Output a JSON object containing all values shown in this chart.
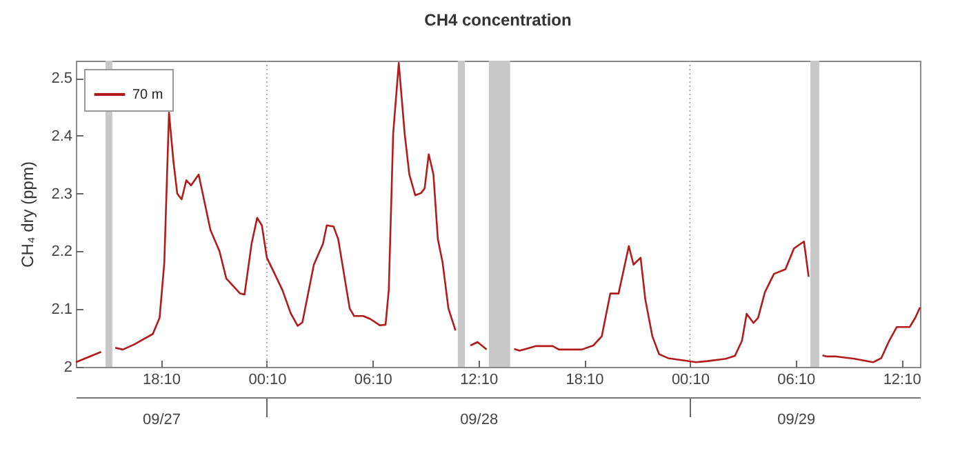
{
  "chart_data": {
    "type": "line",
    "title": "CH4 concentration",
    "ylabel": "CH₄ dry (ppm)",
    "xlim": [
      "--09-27T13:20",
      "--09-29T13:13"
    ],
    "xticks": [
      {
        "value": "--09-27T18:10",
        "label": "18:10"
      },
      {
        "value": "--09-28T00:10",
        "label": "00:10"
      },
      {
        "value": "--09-28T06:10",
        "label": "06:10"
      },
      {
        "value": "--09-28T12:10",
        "label": "12:10"
      },
      {
        "value": "--09-28T18:10",
        "label": "18:10"
      },
      {
        "value": "--09-29T00:10",
        "label": "00:10"
      },
      {
        "value": "--09-29T06:10",
        "label": "06:10"
      },
      {
        "value": "--09-29T12:10",
        "label": "12:10"
      }
    ],
    "x2lim": [
      "--09-27T13:20",
      "--09-29T13:13"
    ],
    "x2ticks": [
      {
        "value": "--09-27T18:10",
        "label": "09/27"
      },
      {
        "value": "--09-28T00:10",
        "label": null
      },
      {
        "value": "--09-28T12:10",
        "label": "09/28"
      },
      {
        "value": "--09-29T00:10",
        "label": null
      },
      {
        "value": "--09-29T06:10",
        "label": "09/29"
      }
    ],
    "ylim": [
      2,
      2.53
    ],
    "yticks": [
      2,
      2.1,
      2.2,
      2.3,
      2.4,
      2.5
    ],
    "grid": false,
    "legend": "top left",
    "line_style": "solid",
    "marker": "none",
    "ref_lines": [
      {
        "axis": "x",
        "value": "--09-28T00:10",
        "label": null,
        "color": "#999999",
        "line_style": "dotted"
      },
      {
        "axis": "x",
        "value": "--09-29T00:10",
        "label": null,
        "color": "#999999",
        "line_style": "dotted"
      }
    ],
    "bands": [
      {
        "axis": "x",
        "from": "--09-27T15:01",
        "to": "--09-27T15:24",
        "label": null,
        "color": "#c8c8c8"
      },
      {
        "axis": "x",
        "from": "--09-28T11:00",
        "to": "--09-28T11:24",
        "label": null,
        "color": "#c8c8c8"
      },
      {
        "axis": "x",
        "from": "--09-28T12:46",
        "to": "--09-28T13:58",
        "label": null,
        "color": "#c8c8c8"
      },
      {
        "axis": "x",
        "from": "--09-29T07:00",
        "to": "--09-29T07:30",
        "label": null,
        "color": "#c8c8c8"
      }
    ],
    "series": [
      {
        "name": "70 m",
        "color": "#b31b1b",
        "x": [
          "--09-27T13:20",
          "--09-27T14:46",
          "--09-27T15:12",
          "--09-27T15:34",
          "--09-27T16:00",
          "--09-27T16:39",
          "--09-27T17:42",
          "--09-27T18:05",
          "--09-27T18:21",
          "--09-27T18:37",
          "--09-27T18:52",
          "--09-27T19:05",
          "--09-27T19:20",
          "--09-27T19:36",
          "--09-27T19:52",
          "--09-27T20:18",
          "--09-27T20:58",
          "--09-27T21:29",
          "--09-27T21:52",
          "--09-27T22:39",
          "--09-27T22:54",
          "--09-27T23:18",
          "--09-27T23:37",
          "--09-27T23:53",
          "--09-28T00:10",
          "--09-28T00:29",
          "--09-28T01:03",
          "--09-28T01:31",
          "--09-28T01:55",
          "--09-28T02:11",
          "--09-28T02:50",
          "--09-28T03:21",
          "--09-28T03:34",
          "--09-28T03:57",
          "--09-28T04:13",
          "--09-28T04:52",
          "--09-28T05:07",
          "--09-28T05:38",
          "--09-28T06:02",
          "--09-28T06:34",
          "--09-28T06:54",
          "--09-28T07:05",
          "--09-28T07:20",
          "--09-28T07:39",
          "--09-28T07:59",
          "--09-28T08:15",
          "--09-28T08:35",
          "--09-28T08:55",
          "--09-28T09:07",
          "--09-28T09:21",
          "--09-28T09:37",
          "--09-28T09:52",
          "--09-28T10:08",
          "--09-28T10:28",
          "--09-28T10:52",
          "--09-28T11:12",
          "--09-28T11:43",
          "--09-28T12:07",
          "--09-28T12:38",
          "--09-28T13:24",
          "--09-28T14:12",
          "--09-28T14:30",
          "--09-28T15:26",
          "--09-28T16:23",
          "--09-28T16:44",
          "--09-28T18:02",
          "--09-28T18:41",
          "--09-28T19:10",
          "--09-28T19:39",
          "--09-28T20:07",
          "--09-28T20:42",
          "--09-28T20:58",
          "--09-28T21:22",
          "--09-28T21:38",
          "--09-28T22:02",
          "--09-28T22:25",
          "--09-28T22:56",
          "--09-28T23:51",
          "--09-29T00:31",
          "--09-29T01:10",
          "--09-29T02:12",
          "--09-29T02:43",
          "--09-29T03:07",
          "--09-29T03:23",
          "--09-29T03:46",
          "--09-29T04:02",
          "--09-29T04:25",
          "--09-29T04:56",
          "--09-29T05:35",
          "--09-29T06:04",
          "--09-29T06:38",
          "--09-29T06:54",
          "--09-29T07:12",
          "--09-29T07:41",
          "--09-29T07:56",
          "--09-29T08:28",
          "--09-29T09:30",
          "--09-29T10:33",
          "--09-29T11:01",
          "--09-29T11:28",
          "--09-29T11:54",
          "--09-29T12:38",
          "--09-29T12:57",
          "--09-29T13:13"
        ],
        "values": [
          2.008,
          2.026,
          null,
          2.033,
          2.03,
          2.039,
          2.057,
          2.085,
          2.18,
          2.44,
          2.356,
          2.3,
          2.29,
          2.323,
          2.314,
          2.333,
          2.237,
          2.2,
          2.153,
          2.127,
          2.125,
          2.213,
          2.258,
          2.245,
          2.189,
          2.169,
          2.133,
          2.093,
          2.071,
          2.077,
          2.177,
          2.213,
          2.245,
          2.243,
          2.221,
          2.101,
          2.088,
          2.088,
          2.083,
          2.072,
          2.073,
          2.133,
          2.404,
          2.526,
          2.404,
          2.333,
          2.297,
          2.301,
          2.309,
          2.368,
          2.333,
          2.221,
          2.181,
          2.101,
          2.063,
          null,
          2.037,
          2.043,
          2.03,
          null,
          2.031,
          2.028,
          2.036,
          2.036,
          2.03,
          2.03,
          2.037,
          2.053,
          2.127,
          2.127,
          2.209,
          2.177,
          2.189,
          2.117,
          2.053,
          2.022,
          2.015,
          2.011,
          2.008,
          2.01,
          2.014,
          2.019,
          2.045,
          2.092,
          2.076,
          2.085,
          2.129,
          2.161,
          2.169,
          2.205,
          2.217,
          2.156,
          null,
          2.02,
          2.018,
          2.018,
          2.014,
          2.008,
          2.015,
          2.045,
          2.069,
          2.069,
          2.085,
          2.103
        ]
      }
    ]
  }
}
